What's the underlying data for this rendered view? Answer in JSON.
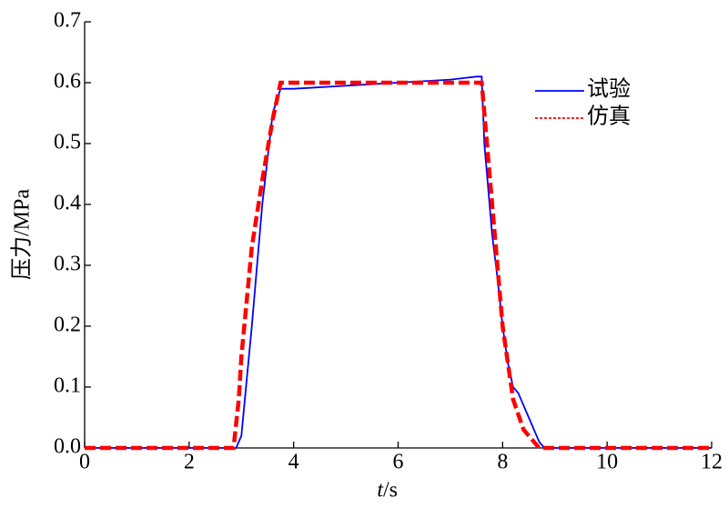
{
  "chart_data": {
    "type": "line",
    "xlabel_var": "t",
    "xlabel_unit": "/s",
    "ylabel": "压力/MPa",
    "xlim": [
      0,
      12
    ],
    "xticks": [
      0,
      2,
      4,
      6,
      8,
      10,
      12
    ],
    "ylim": [
      0,
      0.7
    ],
    "yticks": [
      {
        "value": 0,
        "label": "0.0"
      },
      0.1,
      0.2,
      0.3,
      0.4,
      0.5,
      0.6,
      0.7
    ],
    "grid": false,
    "legend": "upper right",
    "series": [
      {
        "name": "试验",
        "color": "#0000ff",
        "dash": false,
        "x": [
          0,
          2.9,
          3.0,
          3.2,
          3.4,
          3.6,
          3.75,
          4,
          5,
          6,
          7,
          7.5,
          7.6,
          7.65,
          7.7,
          7.8,
          7.9,
          8.0,
          8.1,
          8.2,
          8.3,
          8.5,
          8.7,
          8.8,
          10,
          12
        ],
        "values": [
          0,
          0,
          0.02,
          0.2,
          0.4,
          0.55,
          0.59,
          0.59,
          0.595,
          0.6,
          0.605,
          0.61,
          0.61,
          0.5,
          0.45,
          0.35,
          0.28,
          0.2,
          0.14,
          0.1,
          0.09,
          0.05,
          0.01,
          0,
          0,
          0
        ]
      },
      {
        "name": "仿真",
        "color": "#ff0000",
        "dash": true,
        "x": [
          0,
          2.85,
          2.95,
          3.0,
          3.2,
          3.4,
          3.6,
          3.75,
          4,
          7.6,
          7.65,
          7.7,
          7.8,
          7.9,
          8.0,
          8.1,
          8.2,
          8.4,
          8.6,
          8.7,
          12
        ],
        "values": [
          0,
          0,
          0.08,
          0.15,
          0.33,
          0.44,
          0.54,
          0.6,
          0.6,
          0.6,
          0.55,
          0.5,
          0.4,
          0.3,
          0.2,
          0.14,
          0.08,
          0.03,
          0.01,
          0,
          0
        ]
      }
    ]
  }
}
